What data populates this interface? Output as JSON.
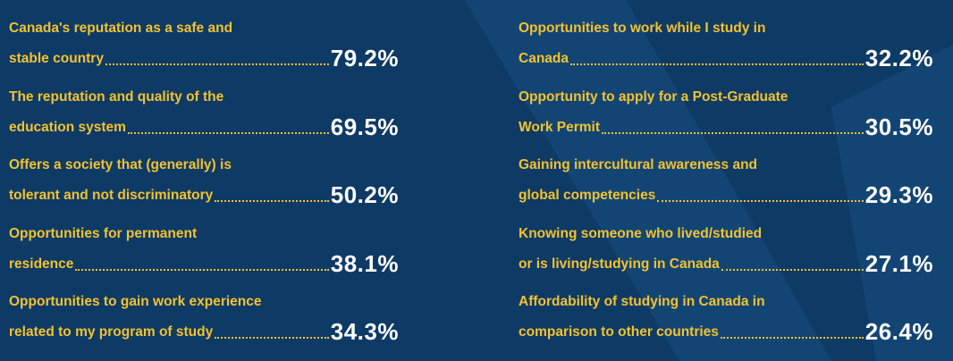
{
  "colors": {
    "background": "#0e3a66",
    "label": "#f2c230",
    "value": "#ffffff"
  },
  "chart_data": {
    "type": "table",
    "rows": [
      {
        "line1": "Canada's reputation as a safe and",
        "line2": "stable country",
        "value": "79.2%"
      },
      {
        "line1": "The reputation and quality of the",
        "line2": "education system",
        "value": "69.5%"
      },
      {
        "line1": "Offers a society that (generally) is",
        "line2": "tolerant and not discriminatory",
        "value": "50.2%"
      },
      {
        "line1": "Opportunities for permanent",
        "line2": "residence",
        "value": "38.1%"
      },
      {
        "line1": "Opportunities to gain work experience",
        "line2": "related to my program of study",
        "value": "34.3%"
      },
      {
        "line1": "Opportunities to work while I study in",
        "line2": "Canada",
        "value": "32.2%"
      },
      {
        "line1": "Opportunity to apply for a Post-Graduate",
        "line2": "Work Permit",
        "value": "30.5%"
      },
      {
        "line1": "Gaining intercultural awareness and",
        "line2": "global competencies",
        "value": "29.3%"
      },
      {
        "line1": "Knowing someone who lived/studied",
        "line2": "or is living/studying in Canada",
        "value": "27.1%"
      },
      {
        "line1": "Affordability of studying in Canada in",
        "line2": "comparison to other countries",
        "value": "26.4%"
      }
    ]
  }
}
